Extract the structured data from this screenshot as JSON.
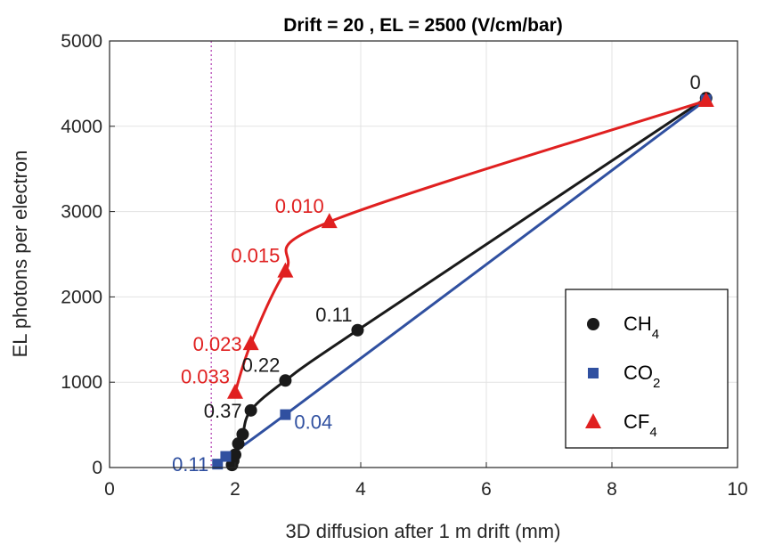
{
  "chart_data": {
    "type": "line",
    "title": "Drift = 20 , EL = 2500 (V/cm/bar)",
    "xlabel": "3D diffusion after 1 m drift (mm)",
    "ylabel": "EL photons per electron",
    "xlim": [
      0,
      10
    ],
    "ylim": [
      0,
      5000
    ],
    "xticks": [
      "0",
      "2",
      "4",
      "6",
      "8",
      "10"
    ],
    "yticks": [
      "0",
      "1000",
      "2000",
      "3000",
      "4000",
      "5000"
    ],
    "grid": true,
    "legend_position": "bottom-right",
    "reference_line": {
      "x": 1.62,
      "style": "dotted",
      "color": "#c060c0"
    },
    "series": [
      {
        "id": "ch4",
        "legend": {
          "base": "CH",
          "sub": "4"
        },
        "color": "#1a1a1a",
        "marker": "circle",
        "x": [
          1.95,
          1.97,
          2.0,
          2.05,
          2.12,
          2.25,
          2.8,
          3.95,
          9.5
        ],
        "y": [
          30,
          80,
          150,
          280,
          390,
          670,
          1020,
          1610,
          4330
        ]
      },
      {
        "id": "co2",
        "legend": {
          "base": "CO",
          "sub": "2"
        },
        "color": "#3050a0",
        "marker": "square",
        "x": [
          1.72,
          1.85,
          2.8,
          9.5
        ],
        "y": [
          40,
          130,
          620,
          4310
        ]
      },
      {
        "id": "cf4",
        "legend": {
          "base": "CF",
          "sub": "4"
        },
        "color": "#e02020",
        "marker": "triangle",
        "x": [
          2.0,
          2.25,
          2.8,
          3.5,
          9.5
        ],
        "y": [
          880,
          1450,
          2300,
          2880,
          4300
        ]
      }
    ],
    "annotations": [
      {
        "text": "0",
        "x": 9.5,
        "y": 4330,
        "series": "ch4",
        "anchor": "above-left"
      },
      {
        "text": "0.11",
        "x": 3.95,
        "y": 1610,
        "series": "ch4",
        "anchor": "above-left"
      },
      {
        "text": "0.22",
        "x": 2.8,
        "y": 1020,
        "series": "ch4",
        "anchor": "above-left"
      },
      {
        "text": "0.37",
        "x": 2.25,
        "y": 670,
        "series": "ch4",
        "anchor": "left"
      },
      {
        "text": "0.04",
        "x": 2.8,
        "y": 620,
        "series": "co2",
        "anchor": "right"
      },
      {
        "text": "0.11",
        "x": 1.72,
        "y": 40,
        "series": "co2",
        "anchor": "left"
      },
      {
        "text": "0.010",
        "x": 3.5,
        "y": 2880,
        "series": "cf4",
        "anchor": "above-left"
      },
      {
        "text": "0.015",
        "x": 2.8,
        "y": 2300,
        "series": "cf4",
        "anchor": "above-left"
      },
      {
        "text": "0.023",
        "x": 2.25,
        "y": 1450,
        "series": "cf4",
        "anchor": "left"
      },
      {
        "text": "0.033",
        "x": 2.0,
        "y": 880,
        "series": "cf4",
        "anchor": "above-left"
      }
    ]
  }
}
